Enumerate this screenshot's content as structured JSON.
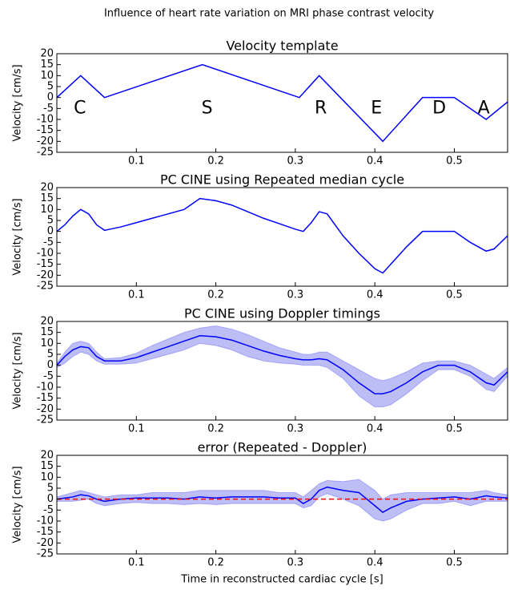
{
  "suptitle": "Influence of heart rate variation on MRI phase contrast velocity",
  "chart_data": [
    {
      "type": "line",
      "title": "Velocity template",
      "ylabel": "Velocity [cm/s]",
      "xlim": [
        0,
        0.567
      ],
      "ylim": [
        -25,
        20
      ],
      "xticks": [
        0.1,
        0.2,
        0.3,
        0.4,
        0.5
      ],
      "yticks": [
        -25,
        -20,
        -15,
        -10,
        -5,
        0,
        5,
        10,
        15,
        20
      ],
      "x": [
        0,
        0.03,
        0.06,
        0.183,
        0.305,
        0.33,
        0.41,
        0.46,
        0.5,
        0.54,
        0.567
      ],
      "series": [
        {
          "color": "#0000ff",
          "values": [
            0,
            10,
            0,
            15,
            0,
            10,
            -20,
            0,
            0,
            -10,
            -2
          ]
        }
      ],
      "annotations": [
        {
          "text": "C",
          "x": 0.029,
          "y": -5
        },
        {
          "text": "S",
          "x": 0.189,
          "y": -5
        },
        {
          "text": "R",
          "x": 0.332,
          "y": -5
        },
        {
          "text": "E",
          "x": 0.402,
          "y": -5
        },
        {
          "text": "D",
          "x": 0.481,
          "y": -5
        },
        {
          "text": "A",
          "x": 0.537,
          "y": -5
        }
      ]
    },
    {
      "type": "line",
      "title": "PC CINE using Repeated median cycle",
      "ylabel": "Velocity [cm/s]",
      "xlim": [
        0,
        0.567
      ],
      "ylim": [
        -25,
        20
      ],
      "xticks": [
        0.1,
        0.2,
        0.3,
        0.4,
        0.5
      ],
      "yticks": [
        -25,
        -20,
        -15,
        -10,
        -5,
        0,
        5,
        10,
        15,
        20
      ],
      "x": [
        0,
        0.01,
        0.02,
        0.03,
        0.04,
        0.05,
        0.06,
        0.08,
        0.1,
        0.12,
        0.14,
        0.16,
        0.18,
        0.2,
        0.22,
        0.24,
        0.26,
        0.28,
        0.3,
        0.31,
        0.32,
        0.33,
        0.34,
        0.36,
        0.38,
        0.4,
        0.41,
        0.42,
        0.44,
        0.46,
        0.48,
        0.5,
        0.52,
        0.54,
        0.55,
        0.567
      ],
      "series": [
        {
          "color": "#0000ff",
          "values": [
            0,
            3,
            7,
            10,
            8,
            3,
            0.5,
            2,
            4,
            6,
            8,
            10,
            15,
            14,
            12,
            9,
            6,
            3.5,
            1,
            0,
            4,
            9,
            8,
            -2,
            -10,
            -17,
            -19,
            -15,
            -7,
            0,
            0,
            0,
            -5,
            -9,
            -8,
            -2
          ]
        }
      ]
    },
    {
      "type": "line",
      "title": "PC CINE using Doppler timings",
      "ylabel": "Velocity [cm/s]",
      "xlim": [
        0,
        0.567
      ],
      "ylim": [
        -25,
        20
      ],
      "xticks": [
        0.1,
        0.2,
        0.3,
        0.4,
        0.5
      ],
      "yticks": [
        -25,
        -20,
        -15,
        -10,
        -5,
        0,
        5,
        10,
        15,
        20
      ],
      "x": [
        0,
        0.01,
        0.02,
        0.03,
        0.04,
        0.05,
        0.06,
        0.08,
        0.1,
        0.12,
        0.14,
        0.16,
        0.18,
        0.2,
        0.22,
        0.24,
        0.26,
        0.28,
        0.3,
        0.31,
        0.32,
        0.33,
        0.34,
        0.36,
        0.38,
        0.4,
        0.41,
        0.42,
        0.44,
        0.46,
        0.48,
        0.5,
        0.52,
        0.54,
        0.55,
        0.567
      ],
      "series": [
        {
          "color": "#0000ff",
          "band_color": "#b3b3f5",
          "values": [
            0,
            4,
            7,
            8.5,
            8,
            4,
            2,
            2,
            3.5,
            6,
            8.5,
            11,
            13.5,
            13,
            11.5,
            9,
            6.5,
            4.5,
            3,
            2.5,
            2.5,
            3,
            2.5,
            -2,
            -8,
            -13,
            -13,
            -12,
            -8,
            -3,
            0,
            0,
            -3,
            -8,
            -9,
            -3
          ],
          "upper": [
            1,
            6,
            10,
            11,
            10,
            6,
            3,
            3.5,
            5.5,
            9,
            12,
            15,
            17,
            18,
            16.5,
            14,
            11,
            8,
            6,
            5,
            5,
            6,
            6,
            2,
            -2,
            -6,
            -7,
            -6,
            -3,
            1,
            2,
            2,
            0,
            -4,
            -6,
            -1
          ],
          "lower": [
            -1,
            1,
            4,
            6,
            5,
            2,
            0.5,
            0.5,
            1,
            3,
            5,
            7,
            10,
            9,
            7,
            4,
            2,
            1,
            0.5,
            0,
            0,
            0,
            -1,
            -6,
            -14,
            -19,
            -19,
            -18,
            -13,
            -7,
            -2,
            -2,
            -5,
            -11,
            -12,
            -5
          ]
        }
      ]
    },
    {
      "type": "line",
      "title": "error (Repeated - Doppler)",
      "ylabel": "Velocity [cm/s]",
      "xlabel": "Time in reconstructed cardiac cycle [s]",
      "xlim": [
        0,
        0.567
      ],
      "ylim": [
        -25,
        20
      ],
      "xticks": [
        0.1,
        0.2,
        0.3,
        0.4,
        0.5
      ],
      "yticks": [
        -25,
        -20,
        -15,
        -10,
        -5,
        0,
        5,
        10,
        15,
        20
      ],
      "x": [
        0,
        0.01,
        0.02,
        0.03,
        0.04,
        0.05,
        0.06,
        0.08,
        0.1,
        0.12,
        0.14,
        0.16,
        0.18,
        0.2,
        0.22,
        0.24,
        0.26,
        0.28,
        0.3,
        0.31,
        0.32,
        0.33,
        0.34,
        0.36,
        0.38,
        0.4,
        0.41,
        0.42,
        0.44,
        0.46,
        0.48,
        0.5,
        0.52,
        0.54,
        0.55,
        0.567
      ],
      "series": [
        {
          "color": "#0000ff",
          "band_color": "#b3b3f5",
          "values": [
            0,
            0.5,
            1,
            2,
            1.5,
            0,
            -1,
            0,
            0.5,
            0.5,
            0.5,
            0,
            1,
            0.5,
            1,
            1,
            1,
            0.5,
            0.5,
            -2,
            0,
            4,
            5.5,
            4,
            3,
            -3,
            -6,
            -4,
            -1,
            0,
            0.5,
            1,
            0,
            1.5,
            1,
            0.5
          ],
          "upper": [
            1,
            2,
            3,
            4,
            3,
            2,
            1,
            2,
            2,
            3,
            3,
            3,
            4,
            4,
            4,
            4,
            4,
            3,
            3,
            1,
            4,
            7,
            8.5,
            8,
            9,
            4,
            0,
            2,
            3,
            3,
            3,
            3,
            3,
            4,
            3,
            2
          ],
          "lower": [
            -1,
            -1,
            -1,
            -0.5,
            0,
            -2,
            -3,
            -2,
            -1.5,
            -2,
            -2,
            -2.5,
            -2,
            -2.5,
            -2,
            -2,
            -2,
            -2,
            -2,
            -4,
            -3,
            1,
            2.5,
            0,
            -3,
            -9,
            -10,
            -9,
            -5,
            -2,
            -2,
            -1,
            -3,
            -1,
            -1,
            -1
          ]
        }
      ],
      "reference_line": {
        "value": 0,
        "color": "#ff0000",
        "dashed": true
      }
    }
  ]
}
